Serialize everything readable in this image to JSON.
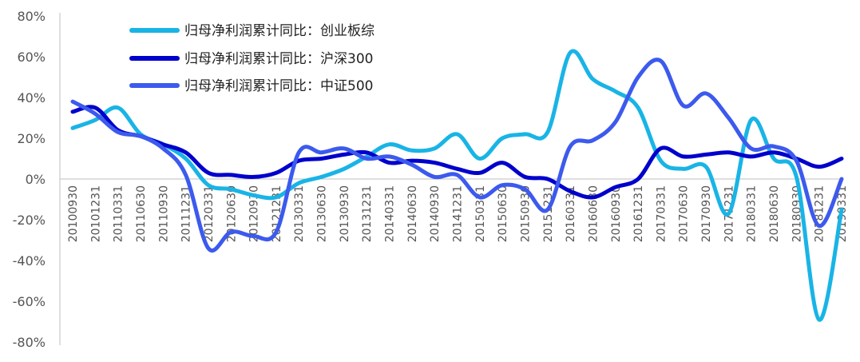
{
  "chart_data": {
    "type": "line",
    "title": "",
    "xlabel": "",
    "ylabel": "",
    "ylim": [
      -80,
      80
    ],
    "yticks": [
      80,
      60,
      40,
      20,
      0,
      -20,
      -40,
      -60,
      -80
    ],
    "ytick_labels": [
      "80%",
      "60%",
      "40%",
      "20%",
      "0%",
      "-20%",
      "-40%",
      "-60%",
      "-80%"
    ],
    "grid": false,
    "legend_position": "top-left",
    "categories": [
      "20100930",
      "20101231",
      "20110331",
      "20110630",
      "20110930",
      "20111231",
      "20120331",
      "20120630",
      "20120930",
      "20121231",
      "20130331",
      "20130630",
      "20130930",
      "20131231",
      "20140331",
      "20140630",
      "20140930",
      "20141231",
      "20150331",
      "20150630",
      "20150930",
      "20151231",
      "20160331",
      "20160630",
      "20160930",
      "20161231",
      "20170331",
      "20170630",
      "20170930",
      "20171231",
      "20180331",
      "20180630",
      "20180930",
      "20181231",
      "20190331"
    ],
    "x_tick_labels": [
      "20100930",
      "20101231",
      "20110331",
      "20110630",
      "20110930",
      "20111231",
      "20120331",
      "20120630",
      "20120930",
      "20121231",
      "20130331",
      "20130630",
      "20130930",
      "20131231",
      "20140331",
      "20140630",
      "20140930",
      "20141231",
      "20150331",
      "20150630",
      "20150930",
      "20151231",
      "20160331",
      "20160630",
      "20160930",
      "20161231",
      "20170331",
      "20170630",
      "20170930",
      "20171231",
      "20180331",
      "20180630",
      "20180930",
      "20181231",
      "20190331"
    ],
    "series": [
      {
        "name": "归母净利润累计同比：创业板综",
        "color": "#19b4e6",
        "values": [
          25,
          29,
          35,
          22,
          17,
          10,
          -3,
          -5,
          -8,
          -9,
          -2,
          1,
          5,
          11,
          17,
          14,
          15,
          22,
          10,
          20,
          22,
          23,
          62,
          49,
          43,
          35,
          9,
          5,
          6,
          -17,
          29,
          10,
          1,
          -69,
          -15
        ]
      },
      {
        "name": "归母净利润累计同比：沪深300",
        "color": "#0000cc",
        "values": [
          33,
          35,
          24,
          21,
          17,
          13,
          3,
          2,
          1,
          3,
          9,
          10,
          12,
          13,
          8,
          9,
          8,
          5,
          3,
          8,
          1,
          0,
          -6,
          -9,
          -4,
          0,
          15,
          11,
          12,
          13,
          11,
          13,
          10,
          6,
          10
        ]
      },
      {
        "name": "归母净利润累计同比：中证500",
        "color": "#3c5aee",
        "values": [
          38,
          32,
          23,
          21,
          15,
          2,
          -34,
          -26,
          -28,
          -26,
          13,
          13,
          15,
          10,
          11,
          7,
          1,
          2,
          -9,
          -3,
          -5,
          -15,
          16,
          19,
          28,
          50,
          58,
          36,
          42,
          30,
          15,
          16,
          9,
          -23,
          0
        ]
      }
    ]
  }
}
